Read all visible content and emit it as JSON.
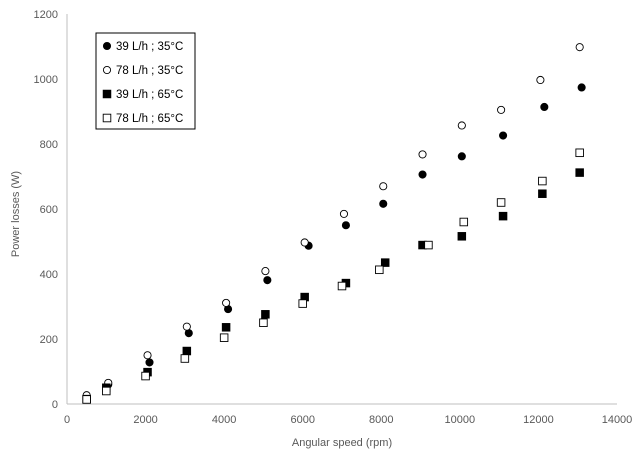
{
  "chart_data": {
    "type": "scatter",
    "title": "",
    "xlabel": "Angular speed (rpm)",
    "ylabel": "Power losses (W)",
    "xlim": [
      0,
      14000
    ],
    "ylim": [
      0,
      1200
    ],
    "x_ticks": [
      0,
      2000,
      4000,
      6000,
      8000,
      10000,
      12000,
      14000
    ],
    "y_ticks": [
      0,
      200,
      400,
      600,
      800,
      1000,
      1200
    ],
    "grid": false,
    "legend": "top-left",
    "series": [
      {
        "name": "39 L/h ; 35°C",
        "marker": "circle-filled",
        "color": "#000000",
        "points": [
          [
            500,
            20
          ],
          [
            1050,
            60
          ],
          [
            2100,
            128
          ],
          [
            3100,
            218
          ],
          [
            4100,
            292
          ],
          [
            5100,
            381
          ],
          [
            6150,
            487
          ],
          [
            7100,
            550
          ],
          [
            8050,
            616
          ],
          [
            9050,
            706
          ],
          [
            10050,
            762
          ],
          [
            11100,
            826
          ],
          [
            12150,
            914
          ],
          [
            13100,
            974
          ]
        ]
      },
      {
        "name": "78 L/h ; 35°C",
        "marker": "circle-open",
        "color": "#000000",
        "points": [
          [
            500,
            27
          ],
          [
            1050,
            65
          ],
          [
            2050,
            150
          ],
          [
            3050,
            238
          ],
          [
            4050,
            311
          ],
          [
            5050,
            409
          ],
          [
            6050,
            497
          ],
          [
            7050,
            585
          ],
          [
            8050,
            670
          ],
          [
            9050,
            768
          ],
          [
            10050,
            857
          ],
          [
            11050,
            905
          ],
          [
            12050,
            997
          ],
          [
            13050,
            1098
          ]
        ]
      },
      {
        "name": "39 L/h ; 65°C",
        "marker": "square-filled",
        "color": "#000000",
        "points": [
          [
            500,
            15
          ],
          [
            1000,
            50
          ],
          [
            2050,
            98
          ],
          [
            3050,
            163
          ],
          [
            4050,
            236
          ],
          [
            5050,
            276
          ],
          [
            6050,
            329
          ],
          [
            7100,
            372
          ],
          [
            8100,
            435
          ],
          [
            9050,
            489
          ],
          [
            10050,
            516
          ],
          [
            11100,
            578
          ],
          [
            12100,
            647
          ],
          [
            13050,
            712
          ]
        ]
      },
      {
        "name": "78 L/h ; 65°C",
        "marker": "square-open",
        "color": "#000000",
        "points": [
          [
            500,
            14
          ],
          [
            1000,
            40
          ],
          [
            2000,
            86
          ],
          [
            3000,
            140
          ],
          [
            4000,
            204
          ],
          [
            5000,
            250
          ],
          [
            6000,
            309
          ],
          [
            7000,
            363
          ],
          [
            7950,
            413
          ],
          [
            9200,
            489
          ],
          [
            10100,
            560
          ],
          [
            11050,
            620
          ],
          [
            12100,
            686
          ],
          [
            13050,
            773
          ]
        ]
      }
    ]
  }
}
